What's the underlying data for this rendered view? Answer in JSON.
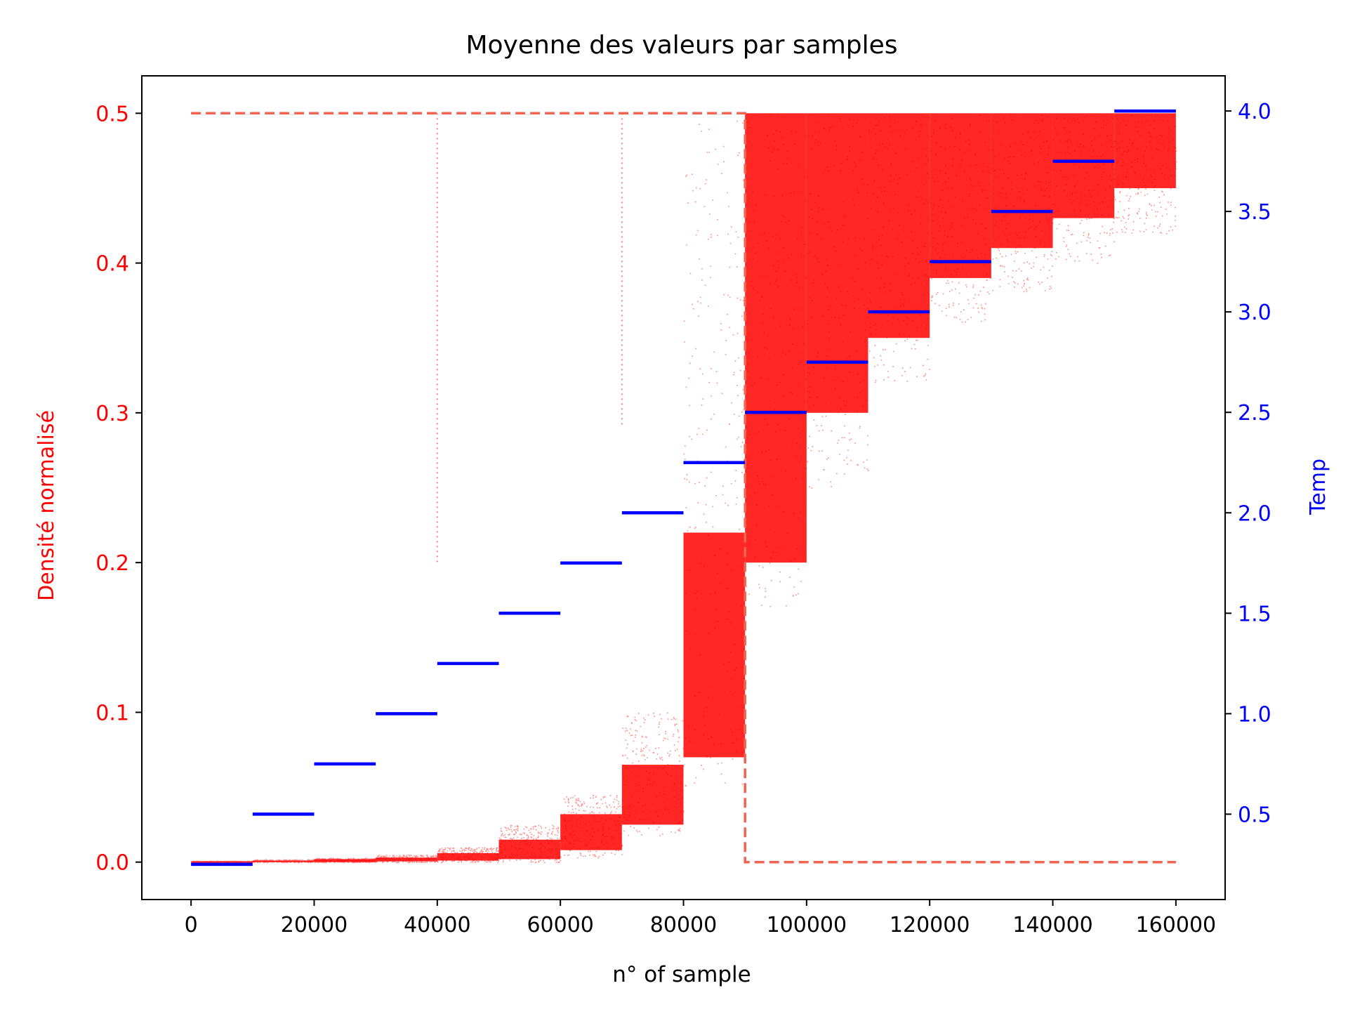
{
  "chart_data": {
    "type": "scatter",
    "title": "Moyenne des valeurs par samples",
    "xlabel": "n° of sample",
    "ylabel_left": "Densité normalisé",
    "ylabel_right": "Temp",
    "xlim": [
      -8000,
      168000
    ],
    "ylim_left": [
      -0.025,
      0.525
    ],
    "ylim_right": [
      0.075,
      4.175
    ],
    "x_ticks": [
      0,
      20000,
      40000,
      60000,
      80000,
      100000,
      120000,
      140000,
      160000
    ],
    "x_tick_labels": [
      "0",
      "20000",
      "40000",
      "60000",
      "80000",
      "100000",
      "120000",
      "140000",
      "160000"
    ],
    "y_left_ticks": [
      0.0,
      0.1,
      0.2,
      0.3,
      0.4,
      0.5
    ],
    "y_left_tick_labels": [
      "0.0",
      "0.1",
      "0.2",
      "0.3",
      "0.4",
      "0.5"
    ],
    "y_right_ticks": [
      0.5,
      1.0,
      1.5,
      2.0,
      2.5,
      3.0,
      3.5,
      4.0
    ],
    "y_right_tick_labels": [
      "0.5",
      "1.0",
      "1.5",
      "2.0",
      "2.5",
      "3.0",
      "3.5",
      "4.0"
    ],
    "colors": {
      "density": "#ff0000",
      "reference": "#f26450",
      "temp": "#0000ff",
      "left_axis_text": "#ff0000",
      "right_axis_text": "#0000ff"
    },
    "grid": false,
    "series": [
      {
        "axis": "left",
        "kind": "scatter-bands",
        "segments": [
          {
            "x": [
              0,
              10000
            ],
            "core": [
              0.0,
              0.0005
            ],
            "spread": [
              0.0,
              0.001
            ]
          },
          {
            "x": [
              10000,
              20000
            ],
            "core": [
              0.0,
              0.001
            ],
            "spread": [
              0.0,
              0.002
            ]
          },
          {
            "x": [
              20000,
              30000
            ],
            "core": [
              0.0,
              0.002
            ],
            "spread": [
              0.0,
              0.003
            ]
          },
          {
            "x": [
              30000,
              40000
            ],
            "core": [
              0.0005,
              0.003
            ],
            "spread": [
              0.0,
              0.005
            ]
          },
          {
            "x": [
              40000,
              50000
            ],
            "core": [
              0.001,
              0.006
            ],
            "spread": [
              0.0,
              0.01
            ]
          },
          {
            "x": [
              50000,
              60000
            ],
            "core": [
              0.002,
              0.015
            ],
            "spread": [
              0.0,
              0.025
            ]
          },
          {
            "x": [
              60000,
              70000
            ],
            "core": [
              0.008,
              0.032
            ],
            "spread": [
              0.003,
              0.045
            ]
          },
          {
            "x": [
              70000,
              80000
            ],
            "core": [
              0.025,
              0.065
            ],
            "spread": [
              0.018,
              0.1
            ]
          },
          {
            "x": [
              80000,
              90000
            ],
            "core": [
              0.07,
              0.22
            ],
            "spread": [
              0.05,
              0.5
            ]
          },
          {
            "x": [
              90000,
              100000
            ],
            "core": [
              0.2,
              0.5
            ],
            "spread": [
              0.17,
              0.5
            ]
          },
          {
            "x": [
              100000,
              110000
            ],
            "core": [
              0.3,
              0.5
            ],
            "spread": [
              0.25,
              0.5
            ]
          },
          {
            "x": [
              110000,
              120000
            ],
            "core": [
              0.35,
              0.5
            ],
            "spread": [
              0.32,
              0.5
            ]
          },
          {
            "x": [
              120000,
              130000
            ],
            "core": [
              0.39,
              0.5
            ],
            "spread": [
              0.36,
              0.5
            ]
          },
          {
            "x": [
              130000,
              140000
            ],
            "core": [
              0.41,
              0.5
            ],
            "spread": [
              0.38,
              0.5
            ]
          },
          {
            "x": [
              140000,
              150000
            ],
            "core": [
              0.43,
              0.5
            ],
            "spread": [
              0.4,
              0.5
            ]
          },
          {
            "x": [
              150000,
              160000
            ],
            "core": [
              0.45,
              0.5
            ],
            "spread": [
              0.42,
              0.5
            ]
          }
        ],
        "outlier_columns": [
          {
            "x": 40000,
            "y": [
              0.2,
              0.5
            ]
          },
          {
            "x": 70000,
            "y": [
              0.29,
              0.5
            ]
          }
        ]
      },
      {
        "axis": "left",
        "kind": "dashed-line",
        "x": [
          0,
          90000,
          90000,
          160000
        ],
        "y": [
          0.5,
          0.5,
          0.0,
          0.0
        ]
      },
      {
        "axis": "right",
        "kind": "steps",
        "x_starts": [
          0,
          10000,
          20000,
          30000,
          40000,
          50000,
          60000,
          70000,
          80000,
          90000,
          100000,
          110000,
          120000,
          130000,
          140000,
          150000
        ],
        "step_width": 10000,
        "values": [
          0.25,
          0.5,
          0.75,
          1.0,
          1.25,
          1.5,
          1.75,
          2.0,
          2.25,
          2.5,
          2.75,
          3.0,
          3.25,
          3.5,
          3.75,
          4.0
        ]
      }
    ]
  }
}
